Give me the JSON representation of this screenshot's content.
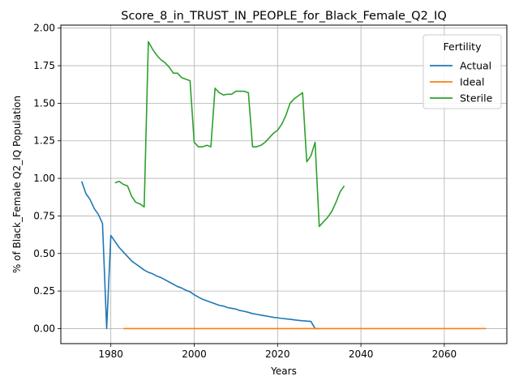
{
  "chart_data": {
    "type": "line",
    "title": "Score_8_in_TRUST_IN_PEOPLE_for_Black_Female_Q2_IQ",
    "xlabel": "Years",
    "ylabel": "% of Black_Female Q2_IQ Population",
    "xlim": [
      1968,
      2075
    ],
    "ylim": [
      -0.1,
      2.02
    ],
    "xticks": [
      1980,
      2000,
      2020,
      2040,
      2060
    ],
    "yticks": [
      0.0,
      0.25,
      0.5,
      0.75,
      1.0,
      1.25,
      1.5,
      1.75,
      2.0
    ],
    "xtick_labels": [
      "1980",
      "2000",
      "2020",
      "2040",
      "2060"
    ],
    "ytick_labels": [
      "0.00",
      "0.25",
      "0.50",
      "0.75",
      "1.00",
      "1.25",
      "1.50",
      "1.75",
      "2.00"
    ],
    "grid": true,
    "legend": {
      "title": "Fertility",
      "position": "top-right"
    },
    "series": [
      {
        "name": "Actual",
        "color": "#1f77b4",
        "x": [
          1973,
          1974,
          1975,
          1976,
          1977,
          1978,
          1979,
          1980,
          1981,
          1982,
          1983,
          1984,
          1985,
          1986,
          1987,
          1988,
          1989,
          1990,
          1991,
          1992,
          1993,
          1994,
          1995,
          1996,
          1997,
          1998,
          1999,
          2000,
          2001,
          2002,
          2003,
          2004,
          2005,
          2006,
          2007,
          2008,
          2009,
          2010,
          2011,
          2012,
          2013,
          2014,
          2015,
          2016,
          2017,
          2018,
          2019,
          2020,
          2021,
          2022,
          2023,
          2024,
          2025,
          2026,
          2027,
          2028,
          2029,
          2030
        ],
        "y": [
          0.98,
          0.9,
          0.86,
          0.8,
          0.76,
          0.7,
          0.0,
          0.62,
          0.58,
          0.54,
          0.51,
          0.48,
          0.45,
          0.43,
          0.41,
          0.39,
          0.375,
          0.365,
          0.35,
          0.34,
          0.325,
          0.31,
          0.295,
          0.28,
          0.27,
          0.255,
          0.245,
          0.225,
          0.21,
          0.195,
          0.185,
          0.175,
          0.165,
          0.155,
          0.15,
          0.14,
          0.135,
          0.13,
          0.12,
          0.115,
          0.108,
          0.1,
          0.095,
          0.09,
          0.085,
          0.08,
          0.075,
          0.072,
          0.068,
          0.065,
          0.062,
          0.058,
          0.055,
          0.052,
          0.05,
          0.048,
          0.0,
          0.0
        ]
      },
      {
        "name": "Ideal",
        "color": "#ff7f0e",
        "x": [
          1983,
          2070
        ],
        "y": [
          0.0,
          0.0
        ]
      },
      {
        "name": "Sterile",
        "color": "#2ca02c",
        "segments": [
          {
            "x": [
              1981,
              1982,
              1983,
              1984,
              1985,
              1986,
              1987,
              1988,
              1989,
              1990,
              1991,
              1992,
              1993,
              1994,
              1995,
              1996,
              1997,
              1998,
              1999,
              2000,
              2001,
              2002,
              2003,
              2004,
              2005,
              2006,
              2007,
              2008,
              2009,
              2010,
              2011,
              2012,
              2013,
              2014,
              2015,
              2016,
              2017,
              2018,
              2019,
              2020,
              2021,
              2022,
              2023,
              2024,
              2025,
              2026,
              2027,
              2028,
              2029,
              2030,
              2031,
              2032,
              2033,
              2034,
              2035,
              2036
            ],
            "y": [
              0.97,
              0.98,
              0.96,
              0.95,
              0.88,
              0.84,
              0.83,
              0.81,
              1.91,
              1.86,
              1.82,
              1.79,
              1.77,
              1.74,
              1.7,
              1.7,
              1.67,
              1.66,
              1.65,
              1.24,
              1.21,
              1.21,
              1.22,
              1.21,
              1.6,
              1.57,
              1.555,
              1.56,
              1.56,
              1.58,
              1.58,
              1.58,
              1.57,
              1.21,
              1.21,
              1.22,
              1.24,
              1.27,
              1.3,
              1.32,
              1.36,
              1.42,
              1.5,
              1.53,
              1.55,
              1.57,
              1.11,
              1.15,
              1.24,
              0.68,
              0.71,
              0.74,
              0.78,
              0.84,
              0.91,
              0.95
            ]
          }
        ]
      }
    ]
  }
}
